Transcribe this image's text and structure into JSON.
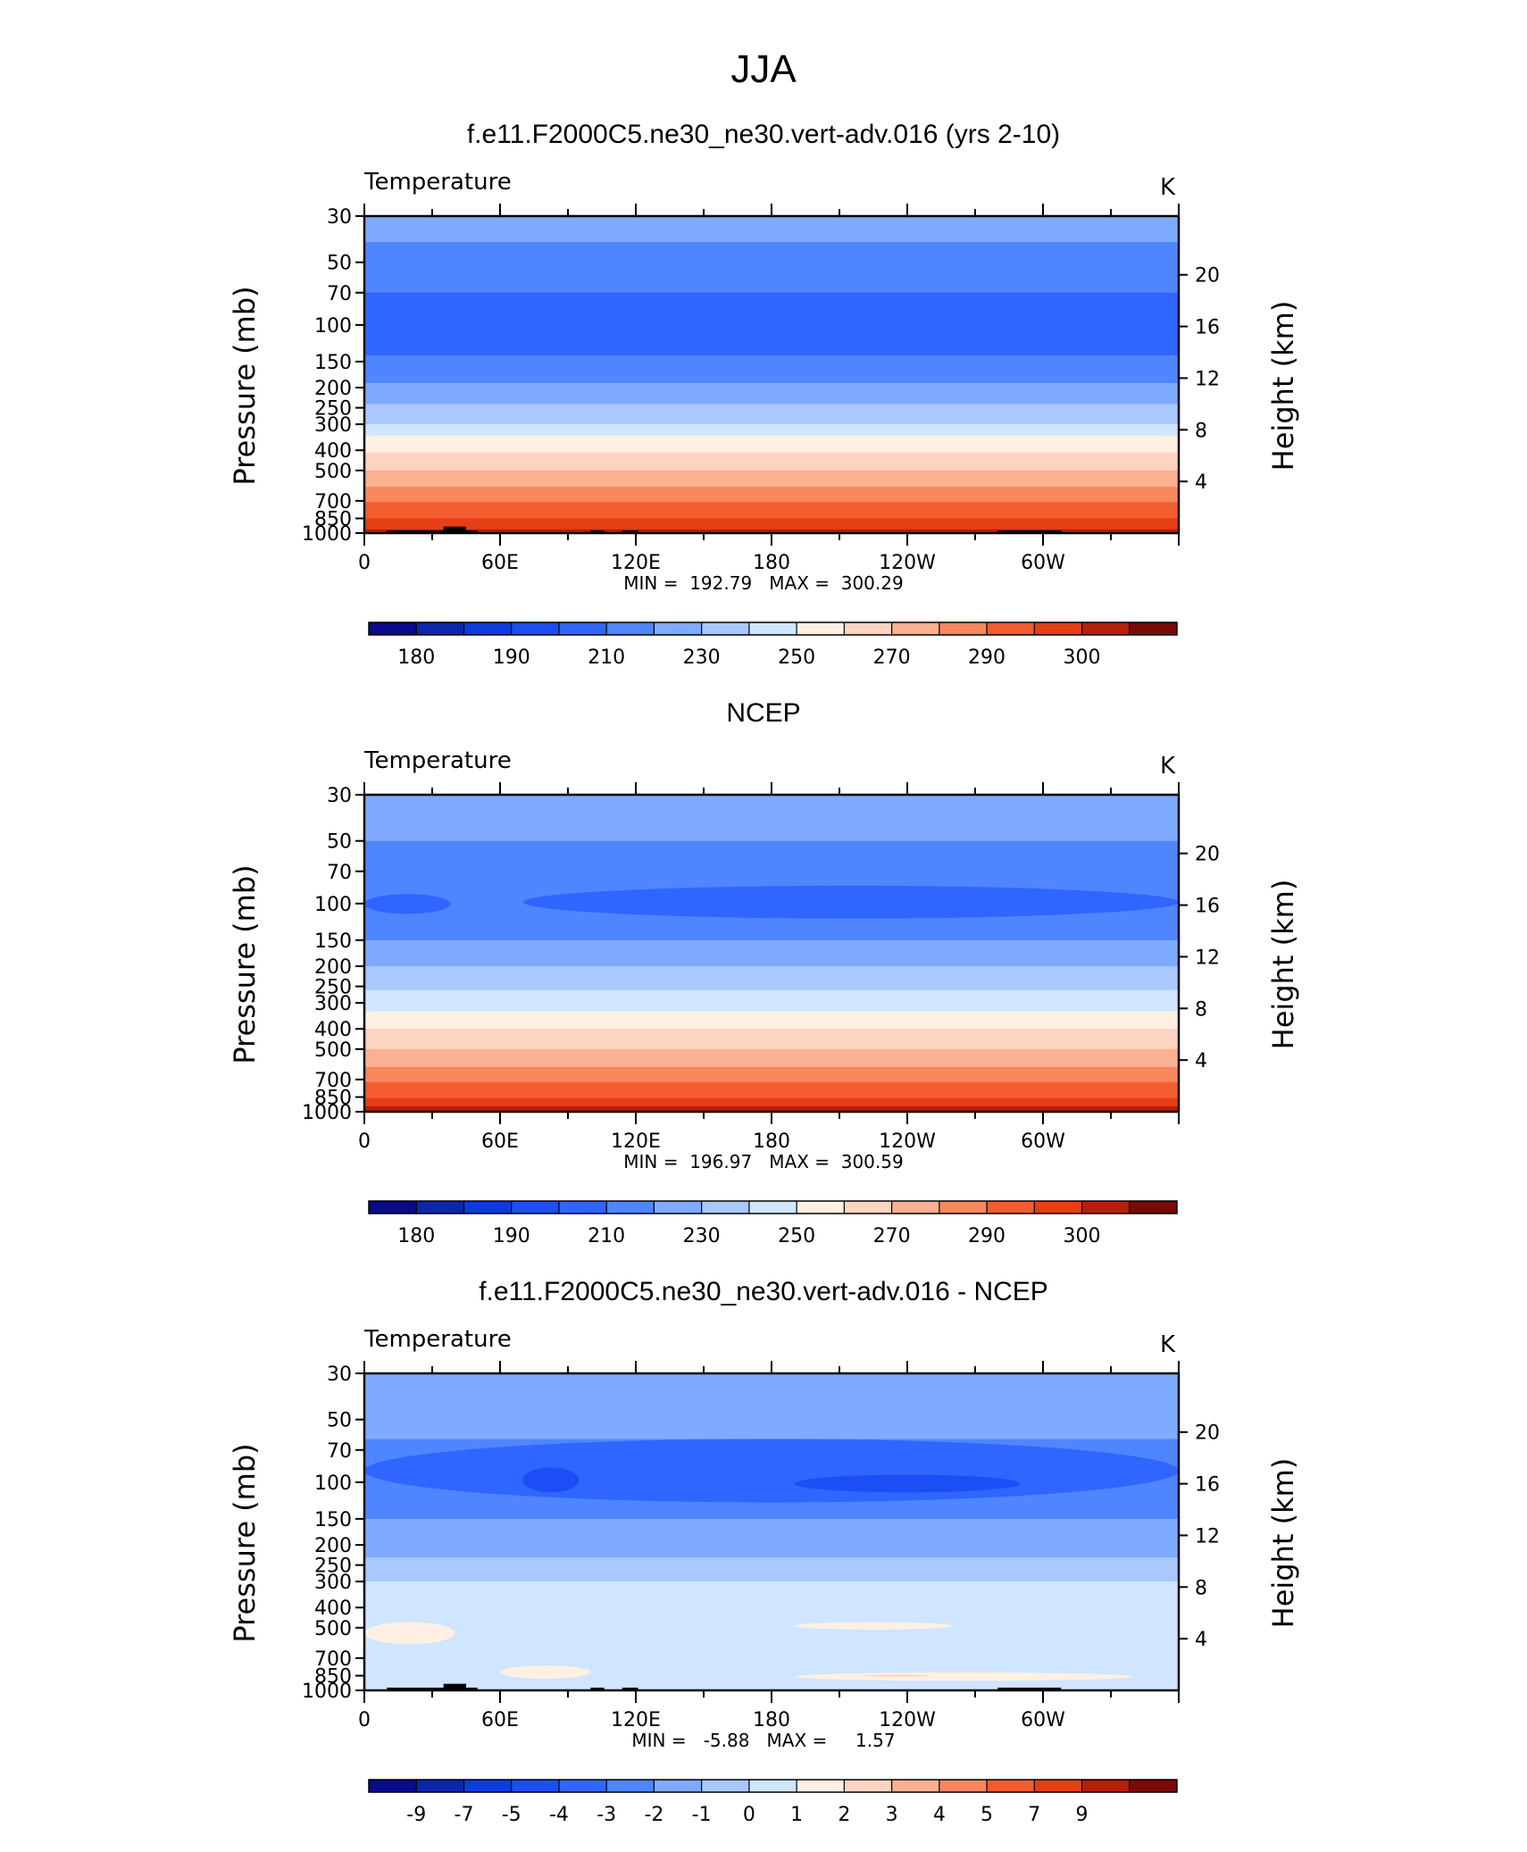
{
  "page_title": "JJA",
  "chart_data": [
    {
      "type": "heatmap",
      "title": "f.e11.F2000C5.ne30_ne30.vert-adv.016 (yrs 2-10)",
      "left_label": "Temperature",
      "units": "K",
      "ylabel": "Pressure  (mb)",
      "ylabel_right": "Height  (km)",
      "pressure_ticks": [
        "30",
        "50",
        "70",
        "100",
        "150",
        "200",
        "250",
        "300",
        "400",
        "500",
        "700",
        "850",
        "1000"
      ],
      "height_ticks": [
        "20",
        "16",
        "12",
        "8",
        "4"
      ],
      "lon_ticks": [
        "0",
        "60E",
        "120E",
        "180",
        "120W",
        "60W"
      ],
      "stats": "MIN =  192.79   MAX =  300.29",
      "colorbar_labels": [
        "180",
        "190",
        "210",
        "230",
        "250",
        "270",
        "290",
        "300"
      ],
      "levels": [
        {
          "p_top": 30,
          "bin": 6
        },
        {
          "p_top": 40,
          "bin": 5
        },
        {
          "p_top": 70,
          "bin": 4
        },
        {
          "p_top": 140,
          "bin": 5
        },
        {
          "p_top": 190,
          "bin": 6
        },
        {
          "p_top": 240,
          "bin": 7
        },
        {
          "p_top": 300,
          "bin": 8
        },
        {
          "p_top": 340,
          "bin": 9
        },
        {
          "p_top": 410,
          "bin": 10
        },
        {
          "p_top": 500,
          "bin": 11
        },
        {
          "p_top": 600,
          "bin": 12
        },
        {
          "p_top": 710,
          "bin": 13
        },
        {
          "p_top": 850,
          "bin": 14
        },
        {
          "p_top": 960,
          "bin": 15
        }
      ],
      "topography": [
        [
          10,
          35,
          970,
          1000
        ],
        [
          35,
          45,
          930,
          1000
        ],
        [
          45,
          50,
          970,
          1000
        ],
        [
          100,
          106,
          970,
          1000
        ],
        [
          114,
          121,
          970,
          1000
        ],
        [
          280,
          308,
          970,
          1000
        ]
      ]
    },
    {
      "type": "heatmap",
      "title": "NCEP",
      "left_label": "Temperature",
      "units": "K",
      "ylabel": "Pressure  (mb)",
      "ylabel_right": "Height  (km)",
      "pressure_ticks": [
        "30",
        "50",
        "70",
        "100",
        "150",
        "200",
        "250",
        "300",
        "400",
        "500",
        "700",
        "850",
        "1000"
      ],
      "height_ticks": [
        "20",
        "16",
        "12",
        "8",
        "4"
      ],
      "lon_ticks": [
        "0",
        "60E",
        "120E",
        "180",
        "120W",
        "60W"
      ],
      "stats": "MIN =  196.97   MAX =  300.59",
      "colorbar_labels": [
        "180",
        "190",
        "210",
        "230",
        "250",
        "270",
        "290",
        "300"
      ],
      "levels": [
        {
          "p_top": 30,
          "bin": 6
        },
        {
          "p_top": 50,
          "bin": 5
        },
        {
          "p_top": 150,
          "bin": 6
        },
        {
          "p_top": 200,
          "bin": 7
        },
        {
          "p_top": 260,
          "bin": 8
        },
        {
          "p_top": 330,
          "bin": 9
        },
        {
          "p_top": 400,
          "bin": 10
        },
        {
          "p_top": 500,
          "bin": 11
        },
        {
          "p_top": 610,
          "bin": 12
        },
        {
          "p_top": 720,
          "bin": 13
        },
        {
          "p_top": 860,
          "bin": 14
        },
        {
          "p_top": 940,
          "bin": 15
        }
      ],
      "blobs": [
        {
          "lon": [
            0,
            38
          ],
          "p": [
            90,
            112
          ],
          "bin": 4
        },
        {
          "lon": [
            70,
            360
          ],
          "p": [
            82,
            118
          ],
          "bin": 4
        }
      ],
      "topography": []
    },
    {
      "type": "heatmap",
      "title": "f.e11.F2000C5.ne30_ne30.vert-adv.016 - NCEP",
      "left_label": "Temperature",
      "units": "K",
      "ylabel": "Pressure  (mb)",
      "ylabel_right": "Height  (km)",
      "pressure_ticks": [
        "30",
        "50",
        "70",
        "100",
        "150",
        "200",
        "250",
        "300",
        "400",
        "500",
        "700",
        "850",
        "1000"
      ],
      "height_ticks": [
        "20",
        "16",
        "12",
        "8",
        "4"
      ],
      "lon_ticks": [
        "0",
        "60E",
        "120E",
        "180",
        "120W",
        "60W"
      ],
      "stats": "MIN =   -5.88   MAX =     1.57",
      "colorbar_labels": [
        "-9",
        "-7",
        "-5",
        "-4",
        "-3",
        "-2",
        "-1",
        "0",
        "1",
        "2",
        "3",
        "4",
        "5",
        "7",
        "9"
      ],
      "levels": [
        {
          "p_top": 30,
          "bin": 6
        },
        {
          "p_top": 62,
          "bin": 5
        },
        {
          "p_top": 150,
          "bin": 6
        },
        {
          "p_top": 230,
          "bin": 7
        },
        {
          "p_top": 300,
          "bin": 8
        }
      ],
      "blobs": [
        {
          "lon": [
            0,
            360
          ],
          "p": [
            62,
            125
          ],
          "bin": 4
        },
        {
          "lon": [
            70,
            95
          ],
          "p": [
            85,
            112
          ],
          "bin": 3
        },
        {
          "lon": [
            190,
            290
          ],
          "p": [
            92,
            112
          ],
          "bin": 3
        },
        {
          "lon": [
            0,
            40
          ],
          "p": [
            470,
            600
          ],
          "bin": 9
        },
        {
          "lon": [
            190,
            260
          ],
          "p": [
            470,
            510
          ],
          "bin": 9
        },
        {
          "lon": [
            60,
            100
          ],
          "p": [
            760,
            880
          ],
          "bin": 9
        },
        {
          "lon": [
            190,
            340
          ],
          "p": [
            820,
            900
          ],
          "bin": 9
        },
        {
          "lon": [
            220,
            250
          ],
          "p": [
            840,
            860
          ],
          "bin": 10
        }
      ],
      "topography": [
        [
          10,
          35,
          970,
          1000
        ],
        [
          35,
          45,
          930,
          1000
        ],
        [
          45,
          50,
          970,
          1000
        ],
        [
          100,
          106,
          970,
          1000
        ],
        [
          114,
          121,
          970,
          1000
        ],
        [
          280,
          308,
          970,
          1000
        ]
      ]
    }
  ],
  "colorbar_colors": [
    "#0a0a8c",
    "#0c27ad",
    "#0c3ce0",
    "#1b4ff5",
    "#2f66ff",
    "#4f86ff",
    "#7faaff",
    "#a9c8ff",
    "#d0e5ff",
    "#fff0e3",
    "#fdd4c1",
    "#fbb090",
    "#f8875e",
    "#f45c30",
    "#e63f14",
    "#b91e0b",
    "#7a0a06"
  ]
}
